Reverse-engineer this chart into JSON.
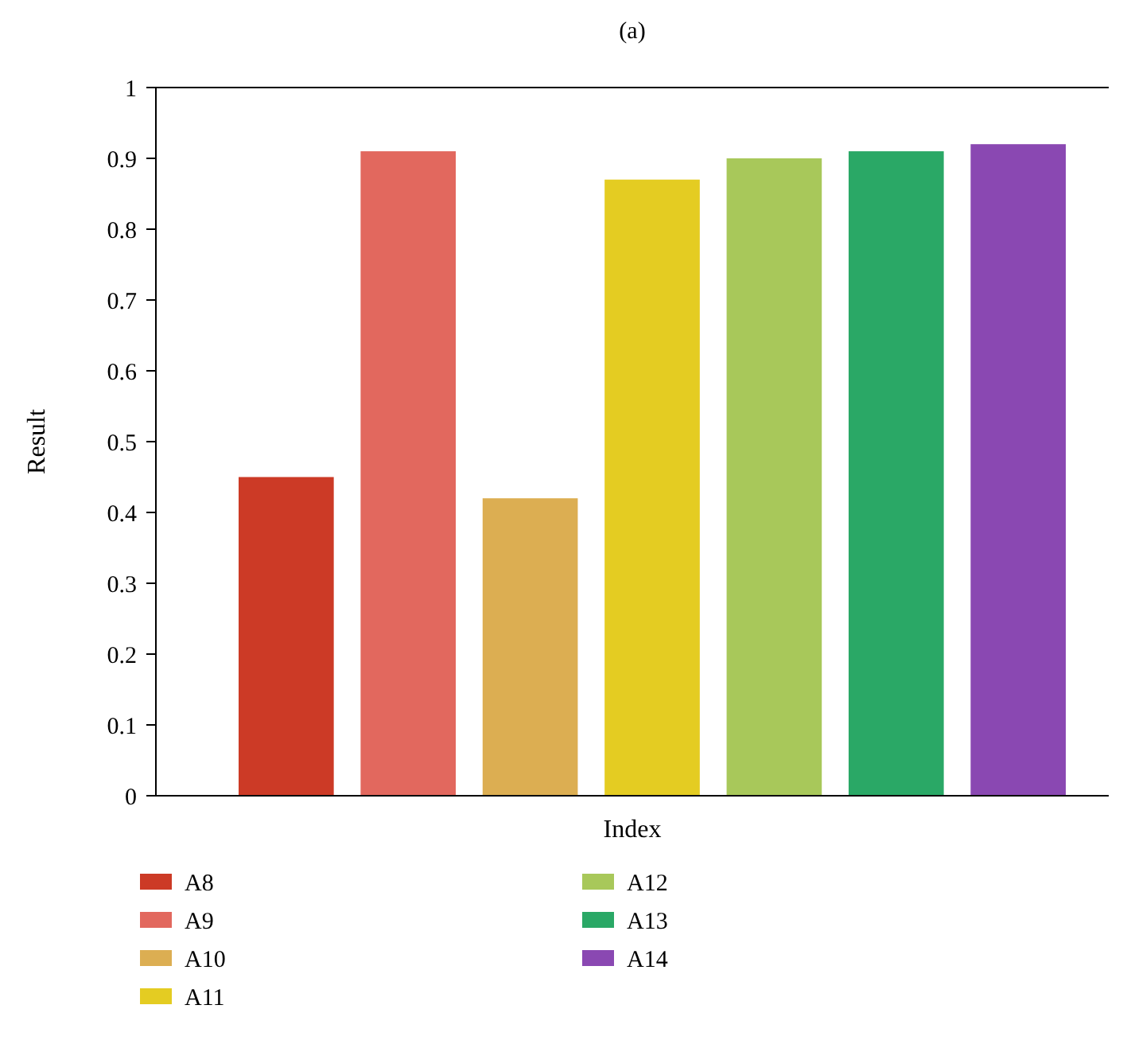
{
  "chart_data": {
    "type": "bar",
    "title": "(a)",
    "xlabel": "Index",
    "ylabel": "Result",
    "categories": [
      null
    ],
    "series": [
      {
        "name": "A8",
        "color": "#cc3a26",
        "values": [
          0.45
        ]
      },
      {
        "name": "A9",
        "color": "#e2685e",
        "values": [
          0.91
        ]
      },
      {
        "name": "A10",
        "color": "#dcae52",
        "values": [
          0.42
        ]
      },
      {
        "name": "A11",
        "color": "#e4cc22",
        "values": [
          0.87
        ]
      },
      {
        "name": "A12",
        "color": "#a8c85a",
        "values": [
          0.9
        ]
      },
      {
        "name": "A13",
        "color": "#2aa866",
        "values": [
          0.91
        ]
      },
      {
        "name": "A14",
        "color": "#8a48b2",
        "values": [
          0.92
        ]
      }
    ],
    "ylim": [
      0,
      1
    ],
    "yticks": [
      0,
      0.1,
      0.2,
      0.3,
      0.4,
      0.5,
      0.6,
      0.7,
      0.8,
      0.9,
      1
    ],
    "grid": false,
    "legend": "bottom"
  }
}
